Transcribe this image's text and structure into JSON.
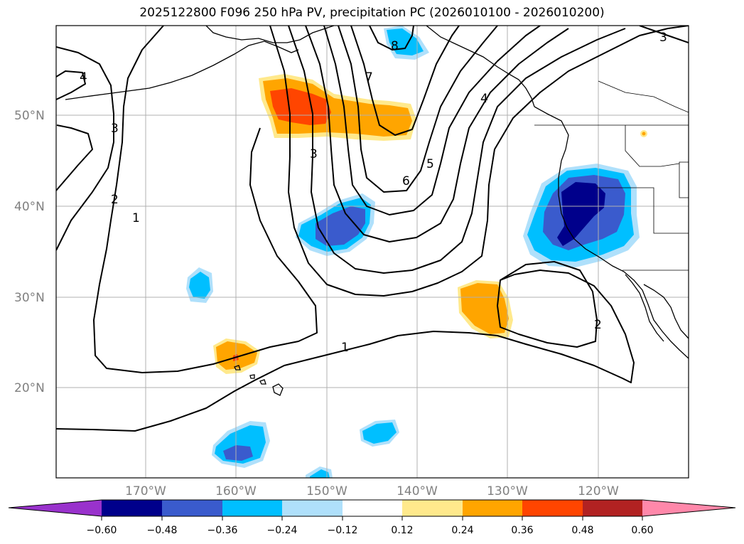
{
  "title": "2025122800 F096 250 hPa PV, precipitation PC (2026010100 - 2026010200)",
  "lat_labels": [
    "50°N",
    "40°N",
    "30°N",
    "20°N"
  ],
  "lon_labels": [
    "170°W",
    "160°W",
    "150°W",
    "140°W",
    "130°W",
    "120°W"
  ],
  "colorbar": {
    "ticks": [
      "−0.60",
      "−0.48",
      "−0.36",
      "−0.24",
      "−0.12",
      "0.12",
      "0.24",
      "0.36",
      "0.48",
      "0.60"
    ],
    "colors": [
      "#9932cc",
      "#00008b",
      "#3a5bcd",
      "#00bfff",
      "#afe0fb",
      "#ffffff",
      "#ffe98c",
      "#ffa500",
      "#ff4500",
      "#b22222",
      "#ff88aa"
    ]
  },
  "contour_labels": [
    "1",
    "1",
    "2",
    "2",
    "3",
    "3",
    "3",
    "4",
    "4",
    "5",
    "6",
    "7",
    "8"
  ],
  "palette": {
    "neg_strong": "#00008b",
    "neg_mid": "#3a5bcd",
    "neg": "#00bfff",
    "neg_weak": "#afe0fb",
    "pos_weak": "#ffe98c",
    "pos": "#ffa500",
    "pos_strong": "#ff4500",
    "pos_vstrong": "#b22222"
  }
}
